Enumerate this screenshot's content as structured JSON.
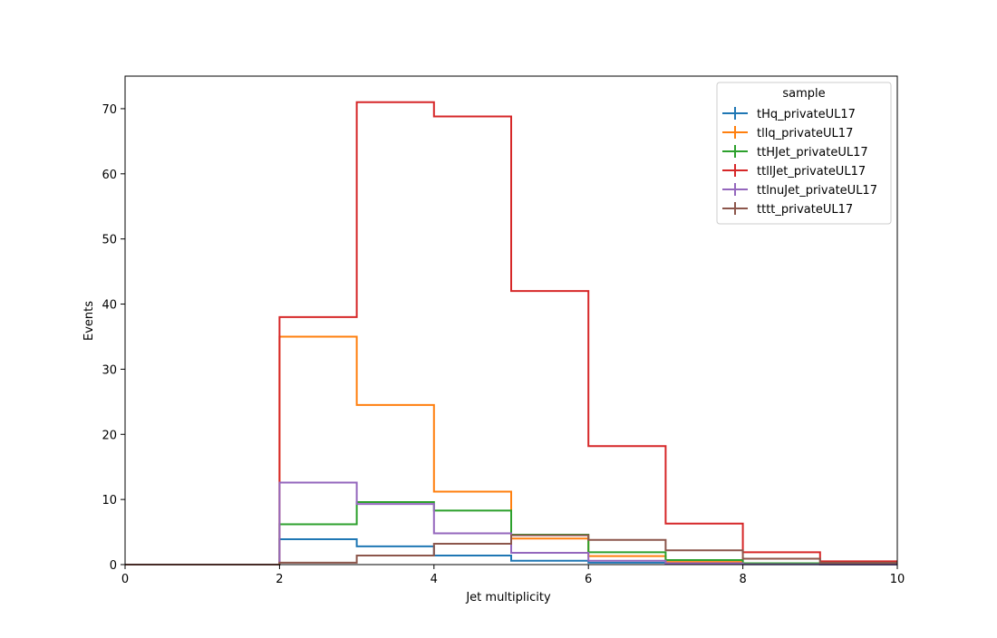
{
  "chart_data": {
    "type": "histogram",
    "title": "",
    "xlabel": "Jet multiplicity",
    "ylabel": "Events",
    "xlim": [
      0,
      10
    ],
    "ylim": [
      0,
      75
    ],
    "xticks": [
      0,
      2,
      4,
      6,
      8,
      10
    ],
    "yticks": [
      0,
      10,
      20,
      30,
      40,
      50,
      60,
      70
    ],
    "grid": false,
    "legend": {
      "title": "sample",
      "placement": "top-right"
    },
    "bin_edges": [
      0,
      1,
      2,
      3,
      4,
      5,
      6,
      7,
      8,
      9,
      10
    ],
    "series": [
      {
        "name": "tHq_privateUL17",
        "color": "#1f77b4",
        "values": [
          0,
          0,
          3.9,
          2.8,
          1.4,
          0.6,
          0.3,
          0.1,
          0.05,
          0.02
        ]
      },
      {
        "name": "tllq_privateUL17",
        "color": "#ff7f0e",
        "values": [
          0,
          0,
          35.0,
          24.5,
          11.2,
          4.0,
          1.3,
          0.4,
          0.1,
          0.05
        ]
      },
      {
        "name": "ttHJet_privateUL17",
        "color": "#2ca02c",
        "values": [
          0,
          0,
          6.2,
          9.6,
          8.3,
          4.6,
          1.9,
          0.7,
          0.2,
          0.05
        ]
      },
      {
        "name": "ttllJet_privateUL17",
        "color": "#d62728",
        "values": [
          0,
          0,
          38.0,
          71.0,
          68.8,
          42.0,
          18.2,
          6.3,
          1.9,
          0.5
        ]
      },
      {
        "name": "ttlnuJet_privateUL17",
        "color": "#9467bd",
        "values": [
          0,
          0,
          12.6,
          9.3,
          4.8,
          1.8,
          0.6,
          0.2,
          0.05,
          0.02
        ]
      },
      {
        "name": "tttt_privateUL17",
        "color": "#8c564b",
        "values": [
          0,
          0,
          0.3,
          1.4,
          3.2,
          4.5,
          3.8,
          2.2,
          0.9,
          0.3
        ]
      }
    ]
  }
}
